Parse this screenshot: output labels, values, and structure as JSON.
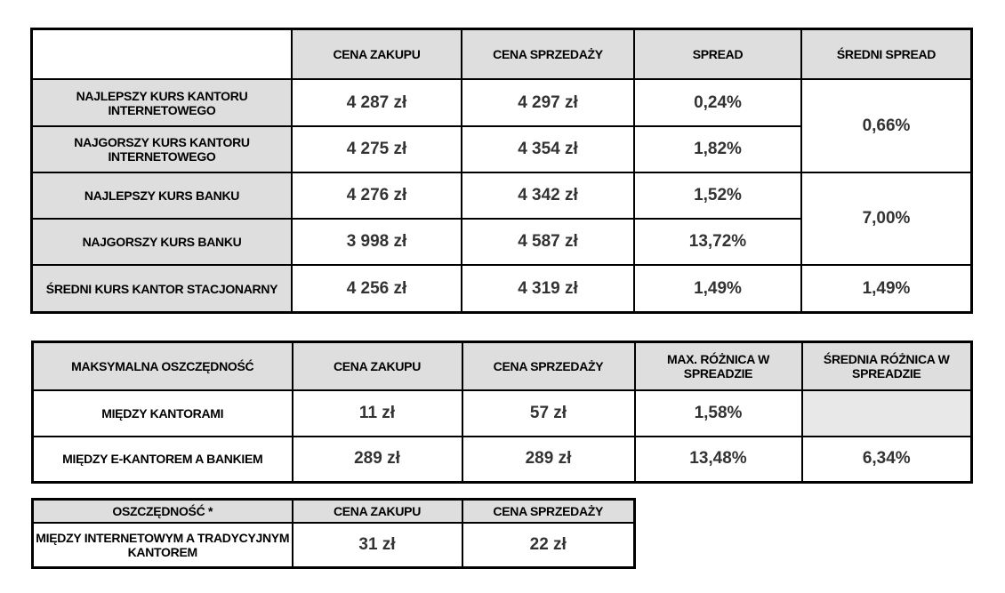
{
  "table1": {
    "headers": [
      "CENA ZAKUPU",
      "CENA SPRZEDAŻY",
      "SPREAD",
      "ŚREDNI SPREAD"
    ],
    "rows": [
      {
        "label": "NAJLEPSZY KURS KANTORU INTERNETOWEGO",
        "buy": "4 287 zł",
        "sell": "4 297 zł",
        "spread": "0,24%"
      },
      {
        "label": "NAJGORSZY KURS KANTORU INTERNETOWEGO",
        "buy": "4 275 zł",
        "sell": "4 354 zł",
        "spread": "1,82%"
      },
      {
        "label": "NAJLEPSZY KURS  BANKU",
        "buy": "4 276 zł",
        "sell": "4 342 zł",
        "spread": "1,52%"
      },
      {
        "label": "NAJGORSZY KURS  BANKU",
        "buy": "3 998 zł",
        "sell": "4 587 zł",
        "spread": "13,72%"
      },
      {
        "label": "ŚREDNI KURS KANTOR STACJONARNY",
        "buy": "4 256 zł",
        "sell": "4 319 zł",
        "spread": "1,49%"
      }
    ],
    "avg_spread": [
      "0,66%",
      "7,00%",
      "1,49%"
    ]
  },
  "table2": {
    "headers": [
      "MAKSYMALNA OSZCZĘDNOŚĆ",
      "CENA ZAKUPU",
      "CENA SPRZEDAŻY",
      "MAX. RÓŻNICA W SPREADZIE",
      "ŚREDNIA RÓŻNICA W SPREADZIE"
    ],
    "rows": [
      {
        "label": "MIĘDZY KANTORAMI",
        "buy": "11 zł",
        "sell": "57 zł",
        "max": "1,58%",
        "avg": ""
      },
      {
        "label": "MIĘDZY E-KANTOREM A BANKIEM",
        "buy": "289 zł",
        "sell": "289 zł",
        "max": "13,48%",
        "avg": "6,34%"
      }
    ]
  },
  "table3": {
    "headers": [
      "OSZCZĘDNOŚĆ *",
      "CENA ZAKUPU",
      "CENA SPRZEDAŻY"
    ],
    "rows": [
      {
        "label": "MIĘDZY INTERNETOWYM A TRADYCYJNYM KANTOREM",
        "buy": "31 zł",
        "sell": "22 zł"
      }
    ]
  }
}
